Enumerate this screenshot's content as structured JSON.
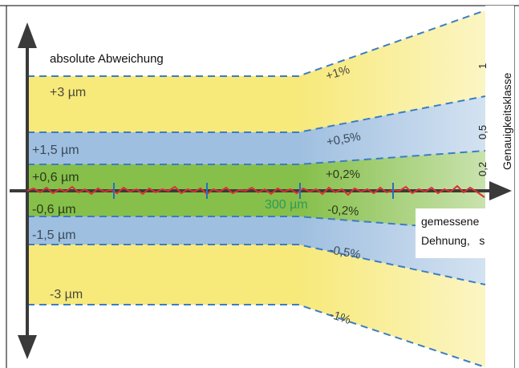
{
  "axes": {
    "y_label": "absolute Abweichung",
    "x_label_line1": "gemessene",
    "x_label_line2": "Dehnung,   s",
    "class_axis_label": "Genauigkeitsklasse"
  },
  "classes": [
    "1",
    "0,5",
    "0,2"
  ],
  "bands_absolute": {
    "plus_3": "+3 µm",
    "plus_1_5": "+1,5 µm",
    "plus_0_6": "+0,6 µm",
    "minus_0_6": "-0,6 µm",
    "minus_1_5": "-1,5 µm",
    "minus_3": "-3 µm"
  },
  "bands_relative": {
    "plus_1": "+1%",
    "plus_0_5": "+0,5%",
    "plus_0_2": "+0,2%",
    "minus_0_2": "-0,2%",
    "minus_0_5": "-0,5%",
    "minus_1": "-1%"
  },
  "x_marker": "300 µm",
  "colors": {
    "yellow": "#f7e97a",
    "blue": "#9fbfe0",
    "green": "#86bf4a",
    "dash": "#3a7ec3",
    "measurement": "#e03030",
    "axis": "#3a3a3a"
  }
}
